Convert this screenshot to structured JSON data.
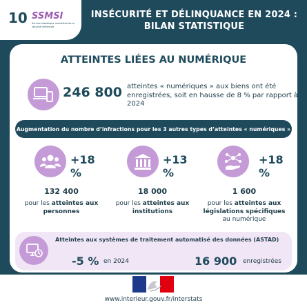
{
  "header": {
    "logo_number": "10",
    "logo_name": "SSMSI",
    "logo_subtitle": "Service statistique ministériel de la sécurité intérieure",
    "title_line1": "INSÉCURITÉ ET DÉLINQUANCE EN 2024 :",
    "title_line2": "BILAN STATISTIQUE"
  },
  "section": {
    "title": "ATTEINTES LIÉES AU NUMÉRIQUE"
  },
  "main": {
    "value": "246 800",
    "description": "atteintes « numériques » aux biens ont été enregistrées, soit en hausse de 8 % par rapport à 2024",
    "icon": "devices-icon"
  },
  "banner": {
    "text": "Augmentation du nombre d’infractions pour les 3 autres types d’atteintes « numériques »"
  },
  "categories": [
    {
      "icon": "people-icon",
      "pct": "+18 %",
      "value": "132 400",
      "text_pre": "pour les ",
      "text_bold": "atteintes aux personnes",
      "text_post": ""
    },
    {
      "icon": "institution-icon",
      "pct": "+13 %",
      "value": "18 000",
      "text_pre": "pour les ",
      "text_bold": "atteintes aux institutions",
      "text_post": ""
    },
    {
      "icon": "network-hand-icon",
      "pct": "+18 %",
      "value": "1 600",
      "text_pre": "pour les ",
      "text_bold": "atteintes aux législations spécifiques",
      "text_post": " au numérique"
    }
  ],
  "astad": {
    "title": "Atteintes aux systèmes de traitement automatisé des données (ASTAD)",
    "pct": "-5 %",
    "pct_label": "en 2024",
    "value": "16 900",
    "value_label": "enregistrées",
    "icon": "computer-system-icon"
  },
  "footer": {
    "url": "www.interieur.gouv.fr/interstats",
    "logo": "marianne-logo"
  },
  "colors": {
    "navy": "#1e4a5c",
    "lilac": "#c59bd7",
    "light_lilac": "#f1e6f6",
    "white": "#ffffff"
  }
}
